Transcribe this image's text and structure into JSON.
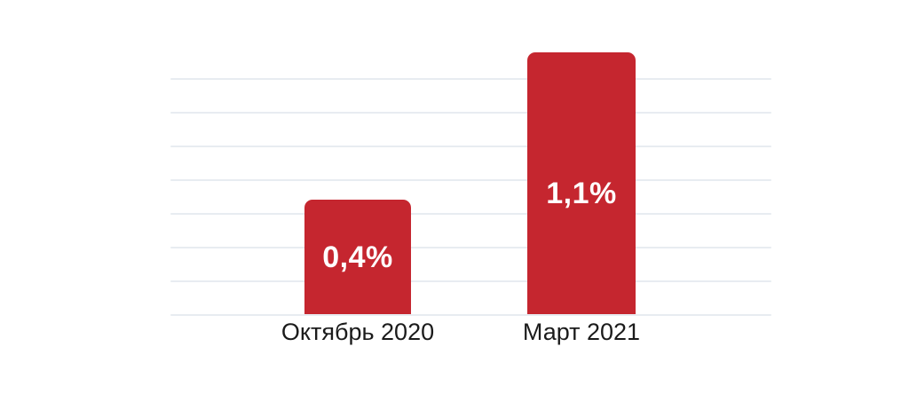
{
  "chart_data": {
    "type": "bar",
    "title": "",
    "categories": [
      "Октябрь 2020",
      "Март 2021"
    ],
    "values": [
      0.4,
      1.1
    ],
    "value_labels": [
      "0,4%",
      "1,1%"
    ],
    "unit": "%",
    "grid": "horizontal",
    "gridline_count": 8,
    "legend": "none",
    "colors": {
      "bar": "#C5262F",
      "value_label_text": "#FFFFFF",
      "axis_label_text": "#1B1B1B",
      "gridline": "#E8ECF1",
      "background": "#FFFFFF"
    }
  }
}
